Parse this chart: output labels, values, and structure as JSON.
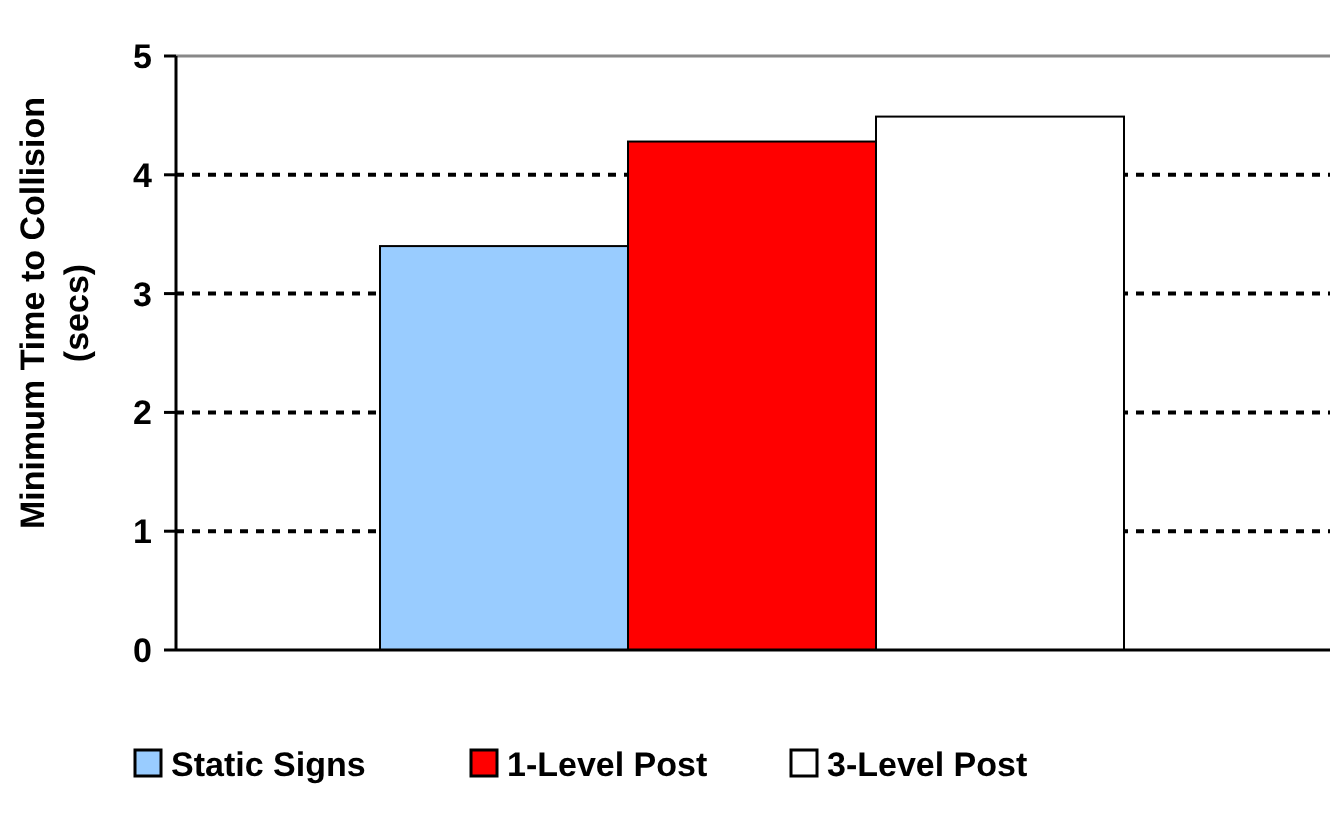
{
  "chart_data": {
    "type": "bar",
    "ylabel": "Minimum Time to Collision\n(secs)",
    "categories": [
      null
    ],
    "series": [
      {
        "name": "Static Signs",
        "color": "#99ccff",
        "values": [
          3.4
        ]
      },
      {
        "name": "1-Level Post",
        "color": "#ff0000",
        "values": [
          4.28
        ]
      },
      {
        "name": "3-Level Post",
        "color": "#ffffff",
        "values": [
          4.49
        ]
      }
    ],
    "ylim": [
      0,
      5
    ],
    "yticks": [
      0,
      1,
      2,
      3,
      4,
      5
    ],
    "grid": "y",
    "legend": "bottom"
  }
}
